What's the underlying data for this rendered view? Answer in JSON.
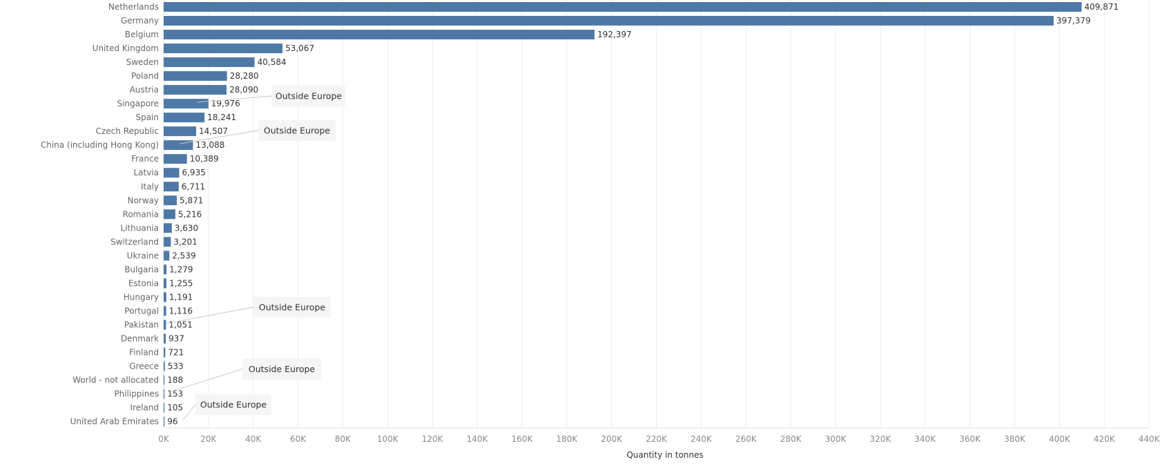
{
  "chart_data": {
    "type": "bar",
    "orientation": "horizontal",
    "categories": [
      "Netherlands",
      "Germany",
      "Belgium",
      "United Kingdom",
      "Sweden",
      "Poland",
      "Austria",
      "Singapore",
      "Spain",
      "Czech Republic",
      "China (including Hong Kong)",
      "France",
      "Latvia",
      "Italy",
      "Norway",
      "Romania",
      "Lithuania",
      "Switzerland",
      "Ukraine",
      "Bulgaria",
      "Estonia",
      "Hungary",
      "Portugal",
      "Pakistan",
      "Denmark",
      "Finland",
      "Greece",
      "World - not allocated",
      "Philippines",
      "Ireland",
      "United Arab Emirates"
    ],
    "values": [
      409871,
      397379,
      192397,
      53067,
      40584,
      28280,
      28090,
      19976,
      18241,
      14507,
      13088,
      10389,
      6935,
      6711,
      5871,
      5216,
      3630,
      3201,
      2539,
      1279,
      1255,
      1191,
      1116,
      1051,
      937,
      721,
      533,
      188,
      153,
      105,
      96
    ],
    "value_labels": [
      "409,871",
      "397,379",
      "192,397",
      "53,067",
      "40,584",
      "28,280",
      "28,090",
      "19,976",
      "18,241",
      "14,507",
      "13,088",
      "10,389",
      "6,935",
      "6,711",
      "5,871",
      "5,216",
      "3,630",
      "3,201",
      "2,539",
      "1,279",
      "1,255",
      "1,191",
      "1,116",
      "1,051",
      "937",
      "721",
      "533",
      "188",
      "153",
      "105",
      "96"
    ],
    "xlabel": "Quantity in tonnes",
    "xlim": [
      0,
      440000
    ],
    "x_tick_values": [
      0,
      20000,
      40000,
      60000,
      80000,
      100000,
      120000,
      140000,
      160000,
      180000,
      200000,
      220000,
      240000,
      260000,
      280000,
      300000,
      320000,
      340000,
      360000,
      380000,
      400000,
      420000,
      440000
    ],
    "x_tick_labels": [
      "0K",
      "20K",
      "40K",
      "60K",
      "80K",
      "100K",
      "120K",
      "140K",
      "160K",
      "180K",
      "200K",
      "220K",
      "240K",
      "260K",
      "280K",
      "300K",
      "320K",
      "340K",
      "360K",
      "380K",
      "400K",
      "420K",
      "440K"
    ],
    "grid": true,
    "bar_color": "#4e79a7",
    "annotations": [
      {
        "text": "Outside Europe",
        "target": "Singapore"
      },
      {
        "text": "Outside Europe",
        "target": "China (including Hong Kong)"
      },
      {
        "text": "Outside Europe",
        "target": "Pakistan"
      },
      {
        "text": "Outside Europe",
        "target": "Philippines"
      },
      {
        "text": "Outside Europe",
        "target": "United Arab Emirates"
      }
    ]
  }
}
